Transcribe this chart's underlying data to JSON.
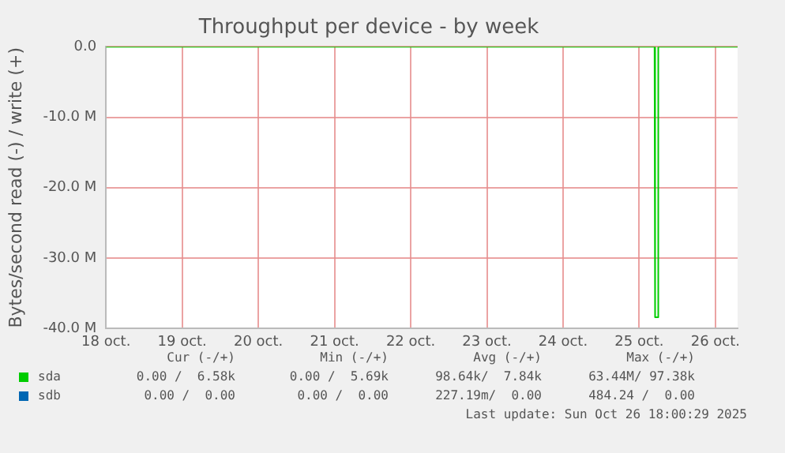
{
  "chart_data": {
    "type": "line",
    "title": "Throughput per device - by week",
    "ylabel": "Bytes/second read (-) / write (+)",
    "xlim": [
      "2025-10-18T00:00",
      "2025-10-26T07:00"
    ],
    "xticks": [
      {
        "value": "2025-10-18T00:00",
        "label": "18 oct."
      },
      {
        "value": "2025-10-19T00:00",
        "label": "19 oct."
      },
      {
        "value": "2025-10-20T00:00",
        "label": "20 oct."
      },
      {
        "value": "2025-10-21T00:00",
        "label": "21 oct."
      },
      {
        "value": "2025-10-22T00:00",
        "label": "22 oct."
      },
      {
        "value": "2025-10-23T00:00",
        "label": "23 oct."
      },
      {
        "value": "2025-10-24T00:00",
        "label": "24 oct."
      },
      {
        "value": "2025-10-25T00:00",
        "label": "25 oct."
      },
      {
        "value": "2025-10-26T00:00",
        "label": "26 oct."
      }
    ],
    "ylim": [
      -40000000,
      0
    ],
    "yticks": [
      {
        "value": -40000000,
        "label": "-40.0 M"
      },
      {
        "value": -30000000,
        "label": "-30.0 M"
      },
      {
        "value": -20000000,
        "label": "-20.0 M"
      },
      {
        "value": -10000000,
        "label": "-10.0 M"
      },
      {
        "value": 0,
        "label": "0.0"
      }
    ],
    "series": [
      {
        "name": "sda",
        "color": "#00cc00",
        "x": [
          "2025-10-18T00:00",
          "2025-10-25T04:50",
          "2025-10-25T05:00",
          "2025-10-25T05:50",
          "2025-10-25T06:00",
          "2025-10-26T07:00"
        ],
        "values": [
          0,
          0,
          -38400000,
          -38400000,
          0,
          0
        ]
      },
      {
        "name": "sdb",
        "color": "#0066b3"
      }
    ],
    "grid": true,
    "legend": "bottom left",
    "marker": "none",
    "line_style": "solid",
    "annotations": [
      "Cur (-/+)",
      "Min (-/+)",
      "Avg (-/+)",
      "Max (-/+)",
      "0.00 /  6.58k",
      "0.00 /  5.69k",
      "98.64k/  7.84k",
      "63.44M/ 97.38k",
      "0.00 /  0.00",
      "0.00 /  0.00",
      "227.19m/  0.00",
      "484.24 /  0.00",
      "Last update: Sun Oct 26 18:00:29 2025"
    ]
  }
}
